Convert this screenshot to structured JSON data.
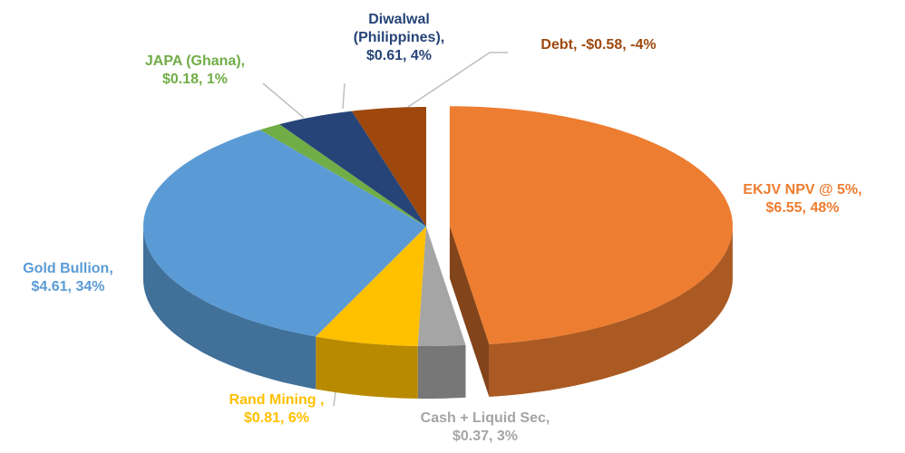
{
  "chart_data": {
    "type": "pie3d",
    "categories": [
      "EKJV NPV @ 5%,",
      "Cash + Liquid Sec,",
      "Rand Mining ,",
      "Gold Bullion,",
      "JAPA (Ghana),",
      "Diwalwal (Philippines),",
      "Debt,"
    ],
    "values": [
      6.55,
      0.37,
      0.81,
      4.61,
      0.18,
      0.61,
      -0.58
    ],
    "value_labels": [
      "$6.55,",
      "$0.37,",
      "$0.81,",
      "$4.61,",
      "$0.18,",
      "$0.61,",
      "-$0.58,"
    ],
    "percent_labels": [
      "48%",
      "3%",
      "6%",
      "34%",
      "1%",
      "4%",
      "-4%"
    ],
    "colors": [
      "#ed7d31",
      "#a5a5a5",
      "#ffc000",
      "#5b9bd5",
      "#70ad47",
      "#264478",
      "#9e480e"
    ],
    "exploded": [
      0
    ]
  }
}
